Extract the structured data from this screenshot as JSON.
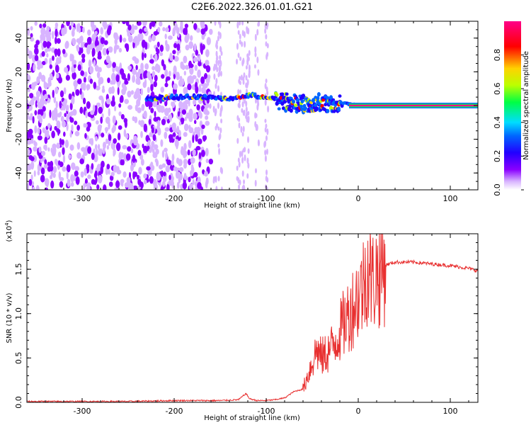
{
  "figure": {
    "title": "C2E6.2022.326.01.01.G21"
  },
  "chart_data": [
    {
      "type": "heatmap",
      "xlabel": "Height of straight line (km)",
      "ylabel": "Frequency (Hz)",
      "xlim": [
        -360,
        130
      ],
      "ylim": [
        -50,
        50
      ],
      "x_ticks": [
        -300,
        -200,
        -100,
        0,
        100
      ],
      "y_ticks": [
        -40,
        -20,
        0,
        20,
        40
      ],
      "grid": false,
      "colorbar": {
        "label": "Normalized spectral amplitude",
        "range": [
          0,
          1
        ],
        "ticks": [
          "0.0",
          "0.2",
          "0.4",
          "0.6",
          "0.8"
        ],
        "colors": [
          "#ffffff",
          "#d8b4ff",
          "#8a00ff",
          "#2200ff",
          "#0066ff",
          "#00ddff",
          "#00ff44",
          "#bbff00",
          "#ffd200",
          "#ff0000",
          "#ff0088"
        ]
      },
      "features": [
        {
          "name": "noise",
          "x_range": [
            -360,
            -160
          ],
          "y_range": [
            -50,
            50
          ],
          "amplitude": 0.35
        },
        {
          "name": "sparse-noise",
          "x_range": [
            -160,
            -95
          ],
          "y_range": [
            -50,
            50
          ],
          "amplitude": 0.2
        },
        {
          "name": "tone-band",
          "x": [
            -230,
            -200,
            -160,
            -140,
            -120,
            -100,
            -80,
            -60,
            -40,
            -20,
            0,
            20,
            60,
            100,
            130
          ],
          "y": [
            4,
            5,
            5,
            4,
            6,
            5,
            2,
            1,
            2,
            1,
            0,
            0,
            0,
            0,
            0
          ],
          "amplitude": 0.4
        },
        {
          "name": "strong-tone",
          "x_range": [
            -10,
            130
          ],
          "y": 0,
          "amplitude": 0.95
        }
      ]
    },
    {
      "type": "line",
      "xlabel": "Height of straight line (km)",
      "ylabel": "SNR (10 * v/v)",
      "scale_label": "(x10^4)",
      "scale_base": "x10",
      "scale_exp": "4",
      "xlim": [
        -360,
        130
      ],
      "ylim": [
        0,
        1.9
      ],
      "x_ticks": [
        -300,
        -200,
        -100,
        0,
        100
      ],
      "y_ticks": [
        "0.0",
        "0.5",
        "1.0",
        "1.5"
      ],
      "grid": false,
      "series": [
        {
          "color": "#e83030",
          "x": [
            -360,
            -300,
            -250,
            -200,
            -150,
            -130,
            -122,
            -118,
            -110,
            -100,
            -90,
            -80,
            -70,
            -60,
            -55,
            -50,
            -45,
            -40,
            -35,
            -30,
            -25,
            -20,
            -15,
            -10,
            -5,
            0,
            5,
            10,
            15,
            20,
            25,
            30,
            40,
            60,
            80,
            100,
            120,
            130
          ],
          "y": [
            0.01,
            0.01,
            0.01,
            0.02,
            0.02,
            0.03,
            0.1,
            0.04,
            0.02,
            0.02,
            0.03,
            0.05,
            0.12,
            0.15,
            0.3,
            0.45,
            0.6,
            0.5,
            0.55,
            0.6,
            0.7,
            0.8,
            0.9,
            1.0,
            1.1,
            1.2,
            1.3,
            1.55,
            1.35,
            1.45,
            1.5,
            1.55,
            1.58,
            1.58,
            1.56,
            1.54,
            1.51,
            1.48
          ]
        }
      ]
    }
  ]
}
